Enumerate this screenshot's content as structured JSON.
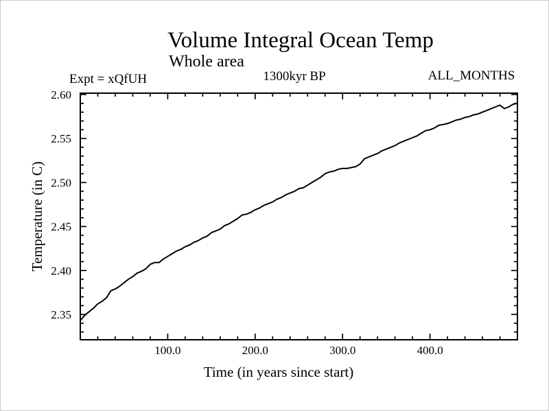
{
  "header": {
    "title": "Volume Integral Ocean Temp",
    "subtitle": "Whole area",
    "period": "1300kyr BP",
    "months": "ALL_MONTHS",
    "experiment": "Expt = xQfUH"
  },
  "chart_data": {
    "type": "line",
    "title": "Volume Integral Ocean Temp",
    "subtitle": "Whole area",
    "annotations": [
      "Expt = xQfUH",
      "1300kyr BP",
      "ALL_MONTHS"
    ],
    "xlabel": "Time (in years since start)",
    "ylabel": "Temperature (in C)",
    "xlim": [
      0,
      500
    ],
    "ylim": [
      2.3212,
      2.6016
    ],
    "x_major_ticks": [
      100,
      200,
      300,
      400
    ],
    "x_major_tick_labels": [
      "100.0",
      "200.0",
      "300.0",
      "400.0"
    ],
    "x_minor_step": 20,
    "y_major_ticks": [
      2.35,
      2.4,
      2.45,
      2.5,
      2.55,
      2.6
    ],
    "y_major_tick_labels": [
      "2.35",
      "2.40",
      "2.45",
      "2.50",
      "2.55",
      "2.60"
    ],
    "y_minor_step": 0.01,
    "grid": false,
    "legend": null,
    "line_color": "#000000",
    "background_color": "#ffffff",
    "series": [
      {
        "name": "volume-integral-ocean-temperature",
        "x": [
          0,
          5,
          10,
          15,
          20,
          25,
          30,
          35,
          40,
          45,
          50,
          55,
          60,
          65,
          70,
          75,
          80,
          85,
          90,
          95,
          100,
          105,
          110,
          115,
          120,
          125,
          130,
          135,
          140,
          145,
          150,
          155,
          160,
          165,
          170,
          175,
          180,
          185,
          190,
          195,
          200,
          205,
          210,
          215,
          220,
          225,
          230,
          235,
          240,
          245,
          250,
          255,
          260,
          265,
          270,
          275,
          280,
          285,
          290,
          295,
          300,
          305,
          310,
          315,
          320,
          325,
          330,
          335,
          340,
          345,
          350,
          355,
          360,
          365,
          370,
          375,
          380,
          385,
          390,
          395,
          400,
          405,
          410,
          415,
          420,
          425,
          430,
          435,
          440,
          445,
          450,
          455,
          460,
          465,
          470,
          475,
          480,
          485,
          490,
          495,
          500
        ],
        "y": [
          2.343,
          2.349,
          2.353,
          2.357,
          2.362,
          2.365,
          2.369,
          2.377,
          2.379,
          2.382,
          2.386,
          2.39,
          2.393,
          2.397,
          2.399,
          2.402,
          2.407,
          2.409,
          2.409,
          2.413,
          2.416,
          2.419,
          2.422,
          2.424,
          2.427,
          2.429,
          2.432,
          2.434,
          2.437,
          2.439,
          2.443,
          2.445,
          2.447,
          2.451,
          2.453,
          2.456,
          2.459,
          2.463,
          2.464,
          2.466,
          2.469,
          2.471,
          2.474,
          2.476,
          2.478,
          2.481,
          2.483,
          2.486,
          2.488,
          2.49,
          2.493,
          2.494,
          2.497,
          2.5,
          2.503,
          2.506,
          2.51,
          2.512,
          2.513,
          2.515,
          2.516,
          2.516,
          2.517,
          2.518,
          2.521,
          2.527,
          2.529,
          2.531,
          2.533,
          2.536,
          2.538,
          2.54,
          2.542,
          2.545,
          2.547,
          2.549,
          2.551,
          2.553,
          2.556,
          2.559,
          2.56,
          2.562,
          2.565,
          2.566,
          2.567,
          2.569,
          2.571,
          2.572,
          2.574,
          2.575,
          2.577,
          2.578,
          2.58,
          2.582,
          2.584,
          2.586,
          2.588,
          2.584,
          2.586,
          2.589,
          2.59
        ]
      }
    ]
  }
}
